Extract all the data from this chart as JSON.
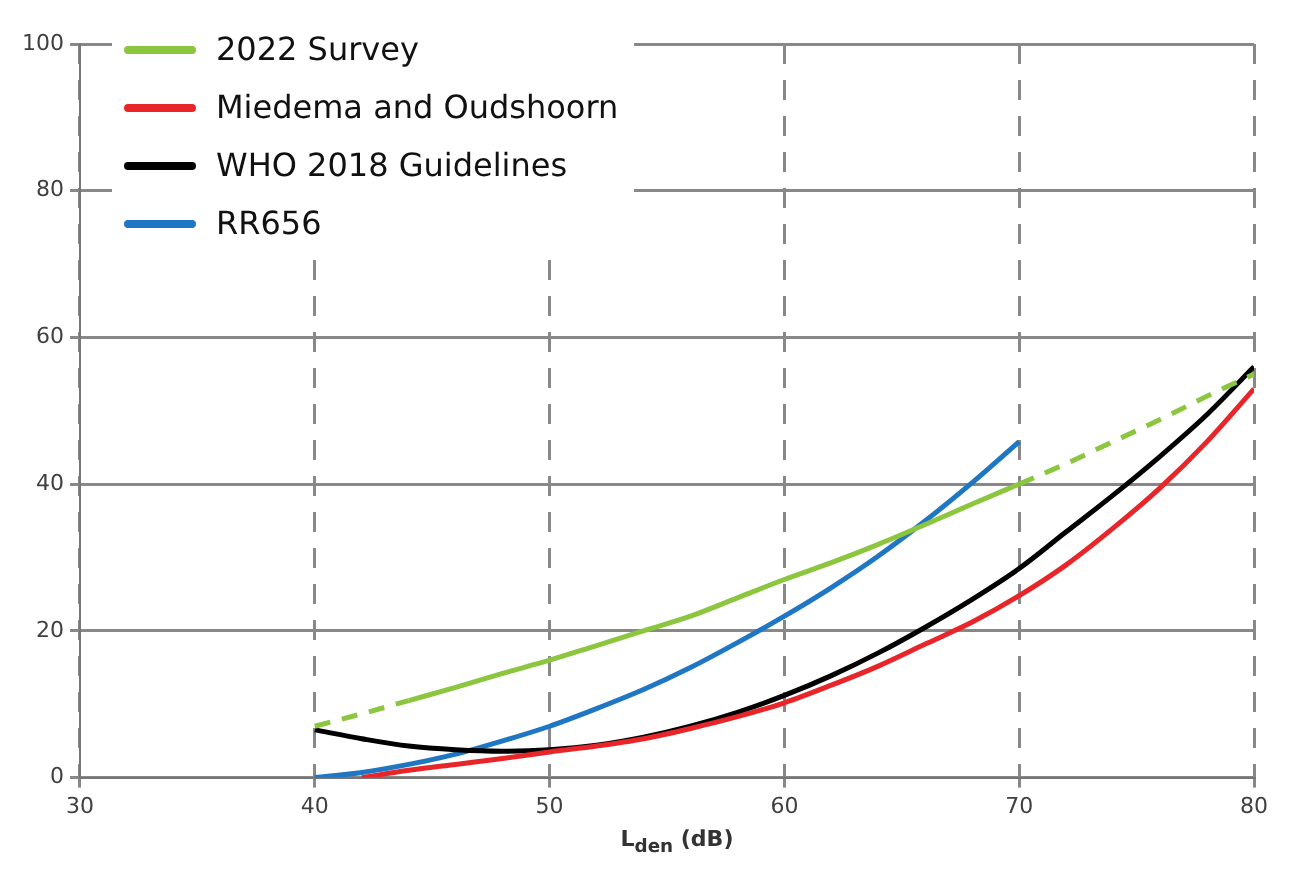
{
  "chart_data": {
    "type": "line",
    "xlabel": "L$_{den}$ (dB)",
    "xlim": [
      30,
      80
    ],
    "xticks": [
      30,
      40,
      50,
      60,
      70,
      80
    ],
    "ylim": [
      0,
      100
    ],
    "yticks": [
      0,
      20,
      40,
      60,
      80,
      100
    ],
    "grid": true,
    "legend": "top left",
    "marker": "none",
    "series": [
      {
        "name": "2022 Survey",
        "color": "#8cc63f",
        "line_style": "solid",
        "x": [
          44,
          46,
          48,
          50,
          52,
          54,
          56,
          58,
          60,
          62,
          64,
          66,
          68,
          70
        ],
        "values": [
          10.5,
          12.3,
          14.2,
          16,
          18,
          20,
          22,
          24.5,
          27,
          29.3,
          31.8,
          34.5,
          37.3,
          40
        ]
      },
      {
        "color": "#8cc63f",
        "line_style": "dashed",
        "x": [
          40,
          42,
          44
        ],
        "values": [
          7,
          8.7,
          10.5
        ]
      },
      {
        "color": "#8cc63f",
        "line_style": "dashed",
        "x": [
          70,
          72,
          74,
          76,
          78,
          80
        ],
        "values": [
          40,
          42.8,
          45.8,
          48.8,
          52,
          55
        ]
      },
      {
        "name": "Miedema and Oudshoorn",
        "color": "#e8262a",
        "line_style": "solid",
        "x": [
          42,
          44,
          46,
          48,
          50,
          52,
          54,
          56,
          58,
          60,
          62,
          64,
          66,
          68,
          70,
          72,
          74,
          76,
          78,
          80
        ],
        "values": [
          0,
          1,
          1.8,
          2.6,
          3.5,
          4.3,
          5.3,
          6.7,
          8.3,
          10.2,
          12.6,
          15.2,
          18.2,
          21.2,
          24.8,
          29,
          34,
          39.5,
          45.8,
          53
        ]
      },
      {
        "name": "WHO 2018 Guidelines",
        "color": "#000000",
        "line_style": "solid",
        "x": [
          40,
          42,
          44,
          46,
          48,
          50,
          52,
          54,
          56,
          58,
          60,
          62,
          64,
          66,
          68,
          70,
          72,
          74,
          76,
          78,
          80
        ],
        "values": [
          6.5,
          5.3,
          4.3,
          3.8,
          3.6,
          3.8,
          4.4,
          5.5,
          7,
          8.9,
          11.2,
          13.9,
          17,
          20.5,
          24.3,
          28.5,
          33.5,
          38.5,
          43.8,
          49.5,
          56
        ]
      },
      {
        "name": "RR656",
        "color": "#1f77c4",
        "line_style": "solid",
        "x": [
          40,
          42,
          44,
          46,
          48,
          50,
          52,
          54,
          56,
          58,
          60,
          62,
          64,
          66,
          68,
          70
        ],
        "values": [
          0,
          0.7,
          1.8,
          3.2,
          5,
          7,
          9.4,
          12,
          15,
          18.4,
          22,
          25.9,
          30.2,
          35,
          40.2,
          45.8
        ]
      }
    ]
  }
}
